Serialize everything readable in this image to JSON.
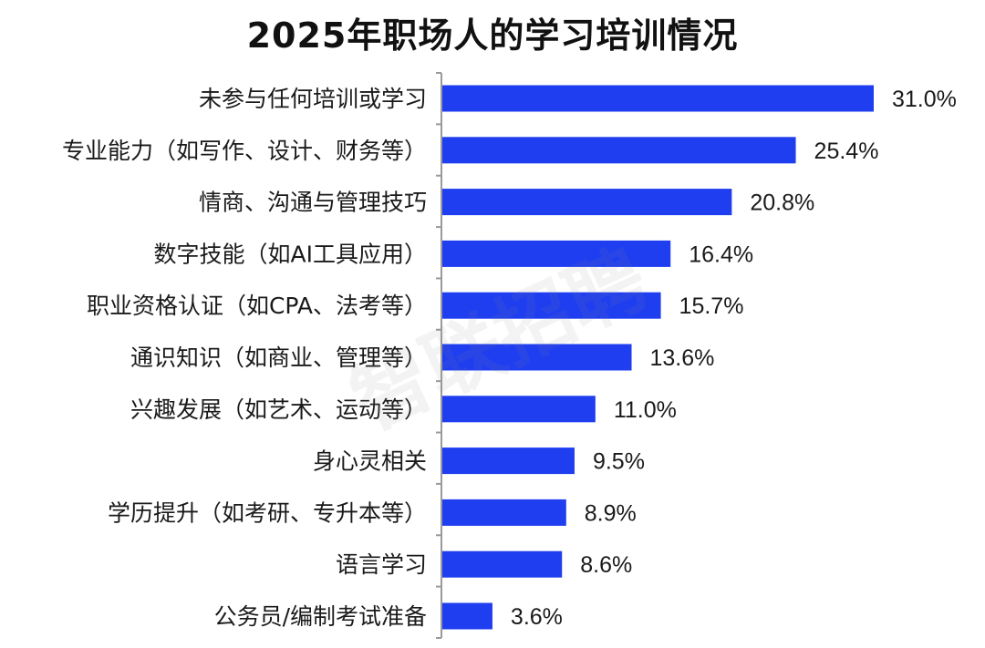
{
  "title": "2025年职场人的学习培训情况",
  "watermark_text": "智联招聘",
  "colors": {
    "bar": "#1f3ef0",
    "axis": "#9a9a9a",
    "text": "#1a1a1a"
  },
  "chart_data": {
    "type": "bar",
    "orientation": "horizontal",
    "title": "2025年职场人的学习培训情况",
    "xlabel": "",
    "ylabel": "",
    "grid": false,
    "xlim": [
      0,
      32
    ],
    "categories": [
      "未参与任何培训或学习",
      "专业能力（如写作、设计、财务等）",
      "情商、沟通与管理技巧",
      "数字技能（如AI工具应用）",
      "职业资格认证（如CPA、法考等）",
      "通识知识（如商业、管理等）",
      "兴趣发展（如艺术、运动等）",
      "身心灵相关",
      "学历提升（如考研、专升本等）",
      "语言学习",
      "公务员/编制考试准备"
    ],
    "values": [
      31.0,
      25.4,
      20.8,
      16.4,
      15.7,
      13.6,
      11.0,
      9.5,
      8.9,
      8.6,
      3.6
    ],
    "value_labels": [
      "31.0%",
      "25.4%",
      "20.8%",
      "16.4%",
      "15.7%",
      "13.6%",
      "11.0%",
      "9.5%",
      "8.9%",
      "8.6%",
      "3.6%"
    ]
  }
}
